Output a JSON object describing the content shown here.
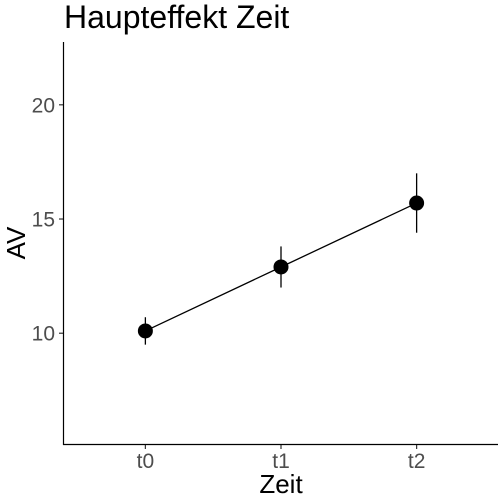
{
  "chart_data": {
    "type": "line",
    "title": "Haupteffekt Zeit",
    "xlabel": "Zeit",
    "ylabel": "AV",
    "categories": [
      "t0",
      "t1",
      "t2"
    ],
    "series": [
      {
        "values": [
          10.1,
          12.9,
          15.7
        ],
        "error_low": [
          9.5,
          12.0,
          14.4
        ],
        "error_high": [
          10.7,
          13.8,
          17.0
        ]
      }
    ],
    "ylim": [
      5.15,
      22.75
    ],
    "yticks": [
      10,
      15,
      20
    ],
    "ytick_labels": [
      "10",
      "15",
      "20"
    ],
    "grid": false,
    "legend": "none"
  }
}
